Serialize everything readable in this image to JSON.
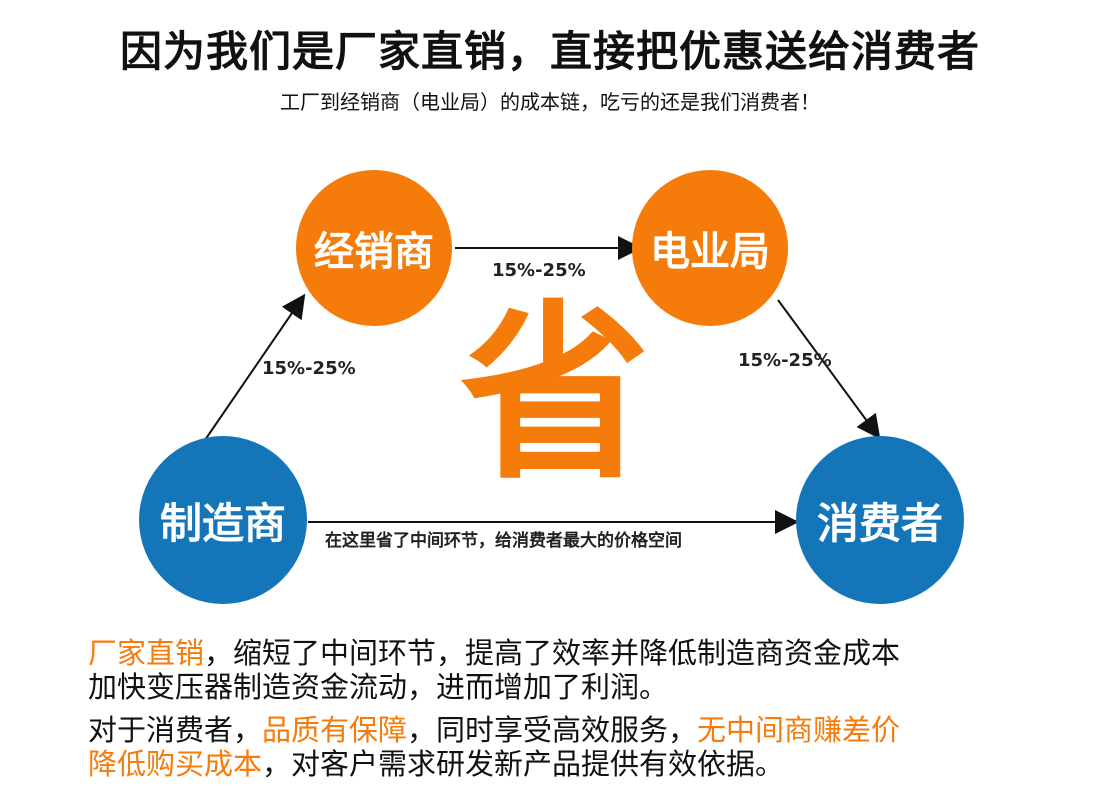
{
  "header": {
    "title": "因为我们是厂家直销，直接把优惠送给消费者",
    "subtitle": "工厂到经销商（电业局）的成本链，吃亏的还是我们消费者！"
  },
  "nodes": {
    "dealer": "经销商",
    "power_bureau": "电业局",
    "manufacturer": "制造商",
    "consumer": "消费者"
  },
  "edges": {
    "manufacturer_to_dealer": "15%-25%",
    "dealer_to_bureau": "15%-25%",
    "bureau_to_consumer": "15%-25%",
    "direct": "在这里省了中间环节，给消费者最大的价格空间"
  },
  "center_char": "省",
  "colors": {
    "orange": "#f57c0a",
    "blue": "#1476b9"
  },
  "body": {
    "p1": {
      "l1_hl": "厂家直销",
      "l1": "，缩短了中间环节，提高了效率并降低制造商资金成本",
      "l2": "加快变压器制造资金流动，进而增加了利润。"
    },
    "p2": {
      "a": "对于消费者，",
      "b_hl": "品质有保障",
      "c": "，同时享受高效服务，",
      "d_hl": "无中间商赚差价",
      "e_hl": "降低购买成本",
      "f": "，对客户需求研发新产品提供有效依据。"
    }
  }
}
